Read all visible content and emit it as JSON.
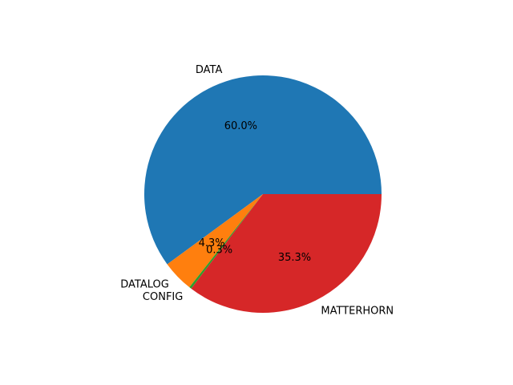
{
  "chart_data": {
    "type": "pie",
    "title": "",
    "slices": [
      {
        "label": "DATA",
        "value": 60.0,
        "pct_label": "60.0%",
        "color": "#1f77b4"
      },
      {
        "label": "DATALOG",
        "value": 4.3,
        "pct_label": "4.3%",
        "color": "#ff7f0e"
      },
      {
        "label": "CONFIG",
        "value": 0.3,
        "pct_label": "0.3%",
        "color": "#2ca02c"
      },
      {
        "label": "MATTERHORN",
        "value": 35.3,
        "pct_label": "35.3%",
        "color": "#d62728"
      }
    ],
    "start_angle_deg": 0,
    "direction": "counterclockwise",
    "legend": "none",
    "grid": false
  }
}
